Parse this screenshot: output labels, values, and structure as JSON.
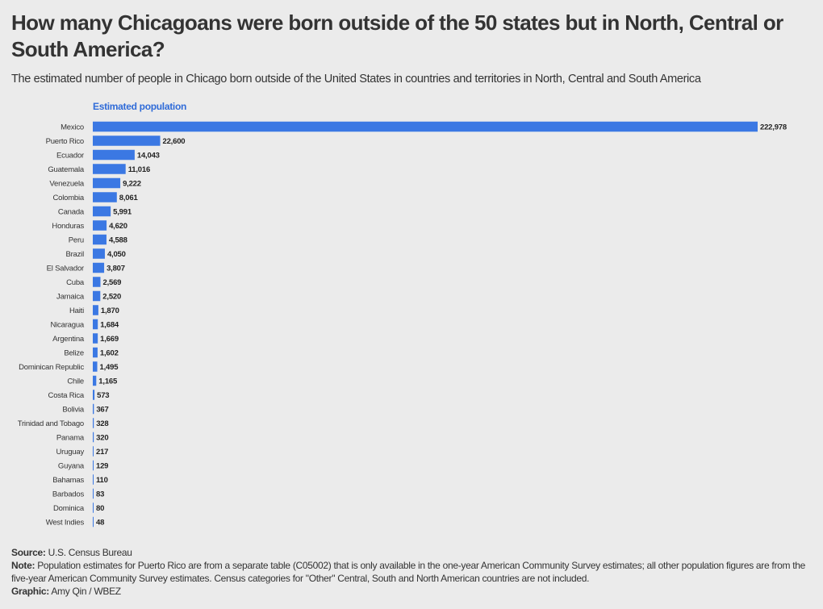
{
  "header": {
    "title": "How many Chicagoans were born outside of the 50 states but in North, Central or South America?",
    "subtitle": "The estimated number of people in Chicago born outside of the United States in countries and territories in North, Central and South America"
  },
  "footer": {
    "source_label": "Source:",
    "source_text": "U.S. Census Bureau",
    "note_label": "Note:",
    "note_text": "Population estimates for Puerto Rico are from a separate table (C05002) that is only available in the one-year American Community Survey estimates; all other population figures are from the five-year American Community Survey estimates. Census categories for \"Other\" Central, South and North American countries are not included.",
    "graphic_label": "Graphic:",
    "graphic_text": "Amy Qin / WBEZ"
  },
  "colors": {
    "bar": "#3b78e3",
    "header_accent": "#2f6bd8",
    "background": "#ebebeb"
  },
  "chart_data": {
    "type": "bar",
    "orientation": "horizontal",
    "column_header": "Estimated population",
    "categories": [
      "Mexico",
      "Puerto Rico",
      "Ecuador",
      "Guatemala",
      "Venezuela",
      "Colombia",
      "Canada",
      "Honduras",
      "Peru",
      "Brazil",
      "El Salvador",
      "Cuba",
      "Jamaica",
      "Haiti",
      "Nicaragua",
      "Argentina",
      "Belize",
      "Dominican Republic",
      "Chile",
      "Costa Rica",
      "Bolivia",
      "Trinidad and Tobago",
      "Panama",
      "Uruguay",
      "Guyana",
      "Bahamas",
      "Barbados",
      "Dominica",
      "West Indies"
    ],
    "values": [
      222978,
      22600,
      14043,
      11016,
      9222,
      8061,
      5991,
      4620,
      4588,
      4050,
      3807,
      2569,
      2520,
      1870,
      1684,
      1669,
      1602,
      1495,
      1165,
      573,
      367,
      328,
      320,
      217,
      129,
      110,
      83,
      80,
      48
    ],
    "value_labels": [
      "222,978",
      "22,600",
      "14,043",
      "11,016",
      "9,222",
      "8,061",
      "5,991",
      "4,620",
      "4,588",
      "4,050",
      "3,807",
      "2,569",
      "2,520",
      "1,870",
      "1,684",
      "1,669",
      "1,602",
      "1,495",
      "1,165",
      "573",
      "367",
      "328",
      "320",
      "217",
      "129",
      "110",
      "83",
      "80",
      "48"
    ],
    "xlim": [
      0,
      222978
    ],
    "grid": false,
    "legend": "none"
  }
}
